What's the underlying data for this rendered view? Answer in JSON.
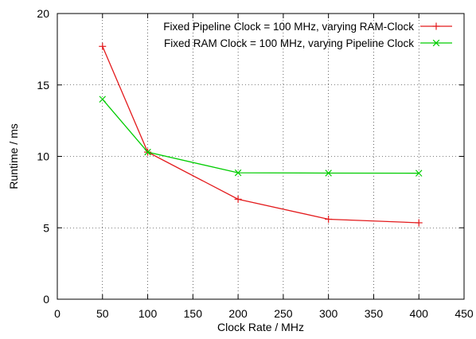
{
  "chart_data": {
    "type": "line",
    "xlabel": "Clock Rate / MHz",
    "ylabel": "Runtime / ms",
    "xlim": [
      0,
      450
    ],
    "ylim": [
      0,
      20
    ],
    "xticks": [
      0,
      50,
      100,
      150,
      200,
      250,
      300,
      350,
      400,
      450
    ],
    "yticks": [
      0,
      5,
      10,
      15,
      20
    ],
    "grid": true,
    "legend_position": "top-right",
    "series": [
      {
        "name": "Fixed Pipeline Clock = 100 MHz, varying RAM-Clock",
        "color": "#e31a1c",
        "marker": "plus",
        "x": [
          50,
          100,
          200,
          300,
          400
        ],
        "y": [
          17.7,
          10.3,
          7.0,
          5.6,
          5.35
        ]
      },
      {
        "name": "Fixed RAM Clock = 100 MHz, varying Pipeline Clock",
        "color": "#00cc00",
        "marker": "cross",
        "x": [
          50,
          100,
          200,
          300,
          400
        ],
        "y": [
          14.0,
          10.3,
          8.85,
          8.83,
          8.82
        ]
      }
    ]
  }
}
